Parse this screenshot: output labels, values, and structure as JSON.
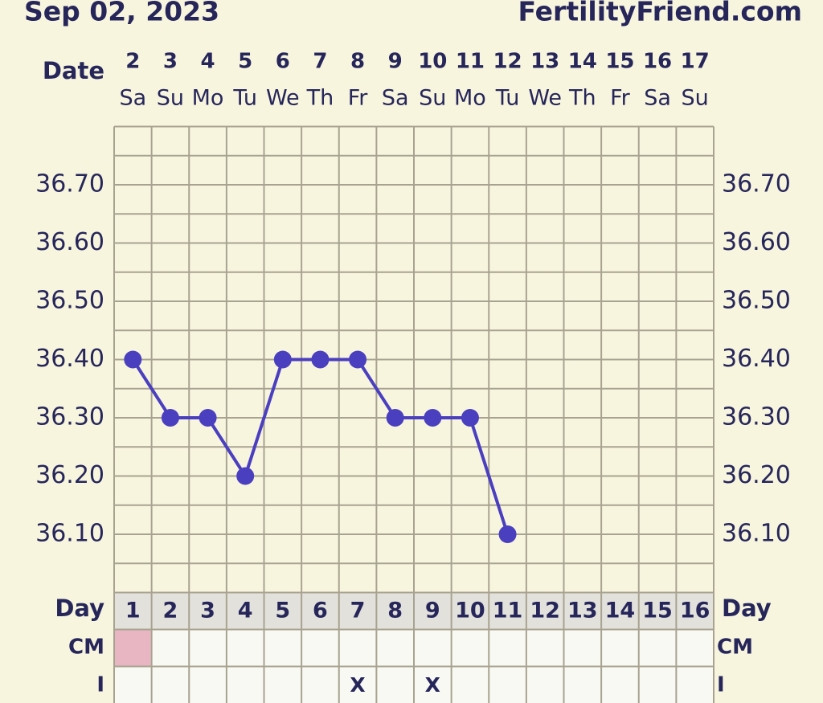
{
  "chart_data": {
    "type": "line",
    "title": "Sep 02, 2023",
    "site": "FertilityFriend.com",
    "date_label": "Date",
    "day_label": "Day",
    "cm_label": "CM",
    "i_label": "I",
    "categories": [
      "2",
      "3",
      "4",
      "5",
      "6",
      "7",
      "8",
      "9",
      "10",
      "11",
      "12",
      "13",
      "14",
      "15",
      "16",
      "17"
    ],
    "weekdays": [
      "Sa",
      "Su",
      "Mo",
      "Tu",
      "We",
      "Th",
      "Fr",
      "Sa",
      "Su",
      "Mo",
      "Tu",
      "We",
      "Th",
      "Fr",
      "Sa",
      "Su"
    ],
    "cycle_days": [
      1,
      2,
      3,
      4,
      5,
      6,
      7,
      8,
      9,
      10,
      11,
      12,
      13,
      14,
      15,
      16
    ],
    "series": [
      {
        "color": "#4a3fbf",
        "values": [
          36.4,
          36.3,
          36.3,
          36.2,
          36.4,
          36.4,
          36.4,
          36.3,
          36.3,
          36.3,
          36.1,
          null,
          null,
          null,
          null,
          null
        ]
      }
    ],
    "cm_colors": [
      "#e8b6c2",
      null,
      null,
      null,
      null,
      null,
      null,
      null,
      null,
      null,
      null,
      null,
      null,
      null,
      null,
      null
    ],
    "intercourse": [
      null,
      null,
      null,
      null,
      null,
      null,
      "X",
      null,
      "X",
      null,
      null,
      null,
      null,
      null,
      null,
      null
    ],
    "ylim": [
      36.0,
      36.8
    ],
    "yticks": [
      {
        "value": 36.1,
        "label": "36.10"
      },
      {
        "value": 36.2,
        "label": "36.20"
      },
      {
        "value": 36.3,
        "label": "36.30"
      },
      {
        "value": 36.4,
        "label": "36.40"
      },
      {
        "value": 36.5,
        "label": "36.50"
      },
      {
        "value": 36.6,
        "label": "36.60"
      },
      {
        "value": 36.7,
        "label": "36.70"
      }
    ],
    "grid": true
  }
}
